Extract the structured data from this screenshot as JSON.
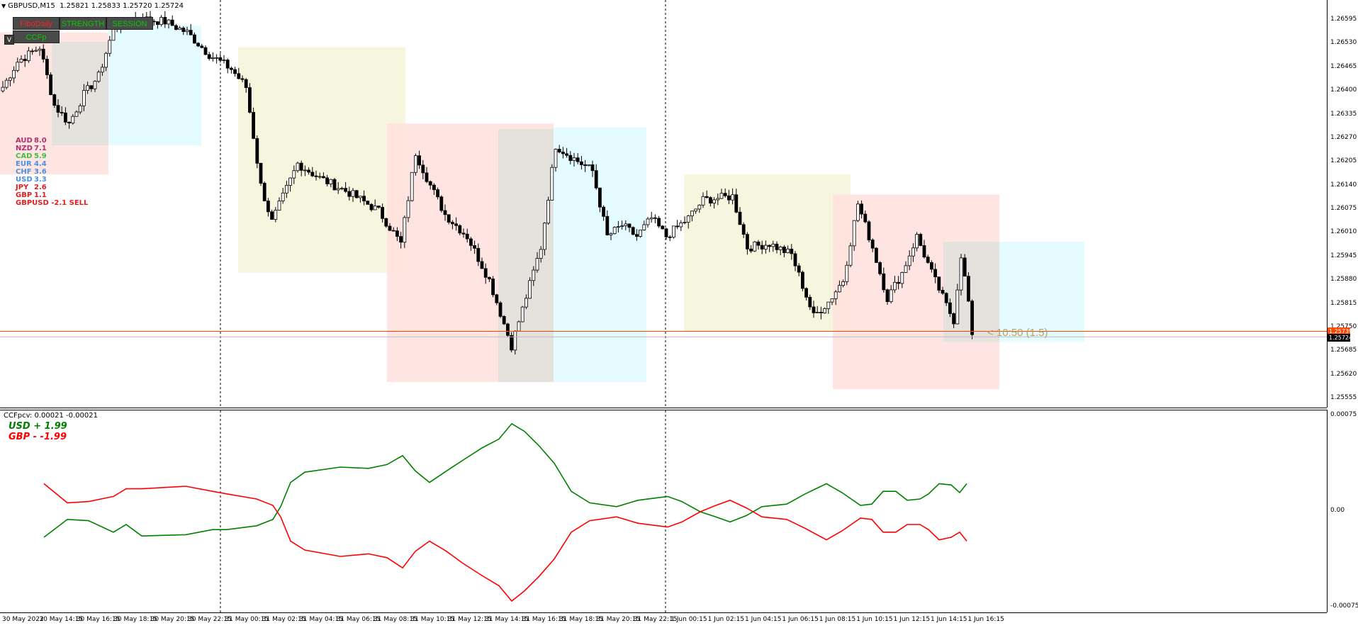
{
  "header": {
    "symbol": "GBPUSD,M15",
    "ohlc": "1.25821 1.25833 1.25720 1.25724"
  },
  "toolbar": {
    "fibo_label": "FiboDaily",
    "strength_label": "STRENGTH",
    "session_label": "SESSION",
    "ccfp_label": "CCFp",
    "v_label": "V"
  },
  "strength_list": [
    {
      "cur": "AUD",
      "val": "8.0",
      "color": "#b03070"
    },
    {
      "cur": "NZD",
      "val": "7.1",
      "color": "#b03070"
    },
    {
      "cur": "CAD",
      "val": "5.9",
      "color": "#40c040"
    },
    {
      "cur": "EUR",
      "val": "4.4",
      "color": "#4a90e0"
    },
    {
      "cur": "CHF",
      "val": "3.6",
      "color": "#4a90e0"
    },
    {
      "cur": "USD",
      "val": "3.3",
      "color": "#4a90e0"
    },
    {
      "cur": "JPY",
      "val": "2.6",
      "color": "#e02020"
    },
    {
      "cur": "GBP",
      "val": "1.1",
      "color": "#e02020"
    }
  ],
  "signal": "GBPUSD -2.1 SELL",
  "timer_label": "< 10:50 (1.5)",
  "price_axis": {
    "labels": [
      "1.26595",
      "1.26530",
      "1.26465",
      "1.26400",
      "1.26335",
      "1.26270",
      "1.26205",
      "1.26140",
      "1.26075",
      "1.26010",
      "1.25945",
      "1.25880",
      "1.25815",
      "1.25750",
      "1.25685",
      "1.25620",
      "1.25555"
    ],
    "bid_tag": "1.25739",
    "last_tag": "1.25724",
    "bid_color": "#ff4500",
    "last_color": "#000000"
  },
  "indicator": {
    "header": "CCFpcv: 0.00021 -0.00021",
    "usd_label": "USD +  1.99",
    "gbp_label": "GBP -  -1.99",
    "usd_color": "#008000",
    "gbp_color": "#ff0000",
    "axis_labels": [
      "0.00075",
      "0.00",
      "-0.00075"
    ]
  },
  "time_axis": [
    "30 May 2022",
    "30 May 14:15",
    "30 May 16:15",
    "30 May 18:15",
    "30 May 20:15",
    "30 May 22:15",
    "31 May 00:15",
    "31 May 02:15",
    "31 May 04:15",
    "31 May 06:15",
    "31 May 08:15",
    "31 May 10:15",
    "31 May 12:15",
    "31 May 14:15",
    "31 May 16:15",
    "31 May 18:15",
    "31 May 20:15",
    "31 May 22:15",
    "1 Jun 00:15",
    "1 Jun 02:15",
    "1 Jun 04:15",
    "1 Jun 06:15",
    "1 Jun 08:15",
    "1 Jun 10:15",
    "1 Jun 12:15",
    "1 Jun 14:15",
    "1 Jun 16:15"
  ],
  "chart_data": {
    "type": "candlestick",
    "price_range": [
      1.25555,
      1.2662
    ],
    "bid": 1.25739,
    "last": 1.25724,
    "anchors": [
      [
        0,
        1.2641
      ],
      [
        4,
        1.2648
      ],
      [
        10,
        1.2652
      ],
      [
        14,
        1.2636
      ],
      [
        18,
        1.2631
      ],
      [
        22,
        1.2639
      ],
      [
        26,
        1.2644
      ],
      [
        30,
        1.2657
      ],
      [
        36,
        1.266
      ],
      [
        44,
        1.2659
      ],
      [
        50,
        1.2656
      ],
      [
        56,
        1.265
      ],
      [
        62,
        1.2646
      ],
      [
        66,
        1.2641
      ],
      [
        70,
        1.2614
      ],
      [
        73,
        1.2604
      ],
      [
        80,
        1.262
      ],
      [
        86,
        1.2616
      ],
      [
        94,
        1.2612
      ],
      [
        102,
        1.2607
      ],
      [
        108,
        1.2598
      ],
      [
        112,
        1.2623
      ],
      [
        116,
        1.2614
      ],
      [
        120,
        1.2606
      ],
      [
        126,
        1.26
      ],
      [
        132,
        1.2588
      ],
      [
        136,
        1.2576
      ],
      [
        138,
        1.257
      ],
      [
        141,
        1.258
      ],
      [
        146,
        1.2597
      ],
      [
        150,
        1.2625
      ],
      [
        154,
        1.2622
      ],
      [
        160,
        1.2618
      ],
      [
        164,
        1.26
      ],
      [
        168,
        1.2603
      ],
      [
        172,
        1.26
      ],
      [
        176,
        1.2605
      ],
      [
        180,
        1.26
      ],
      [
        186,
        1.2605
      ],
      [
        190,
        1.261
      ],
      [
        198,
        1.2611
      ],
      [
        202,
        1.2597
      ],
      [
        208,
        1.2598
      ],
      [
        214,
        1.2595
      ],
      [
        220,
        1.2578
      ],
      [
        224,
        1.2582
      ],
      [
        228,
        1.2588
      ],
      [
        232,
        1.2609
      ],
      [
        236,
        1.2597
      ],
      [
        240,
        1.2583
      ],
      [
        244,
        1.259
      ],
      [
        248,
        1.26
      ],
      [
        252,
        1.259
      ],
      [
        256,
        1.2581
      ],
      [
        258,
        1.2577
      ],
      [
        260,
        1.2595
      ],
      [
        262,
        1.2582
      ],
      [
        263,
        1.2573
      ]
    ],
    "sessions": [
      {
        "x0": 0,
        "x1": 153,
        "y0": 1.2656,
        "y1": 1.2617,
        "color": "#ffe0dc"
      },
      {
        "x0": 73,
        "x1": 153,
        "y0": 1.26535,
        "y1": 1.2625,
        "color": "#e0e0dc"
      },
      {
        "x0": 153,
        "x1": 284,
        "y0": 1.2658,
        "y1": 1.2625,
        "color": "#dffcff"
      },
      {
        "x0": 336,
        "x1": 572,
        "y0": 1.2652,
        "y1": 1.259,
        "color": "#f5f3d8"
      },
      {
        "x0": 546,
        "x1": 781,
        "y0": 1.2631,
        "y1": 1.256,
        "color": "#ffe0dc"
      },
      {
        "x0": 703,
        "x1": 781,
        "y0": 1.26295,
        "y1": 1.256,
        "color": "#e0e0dc"
      },
      {
        "x0": 781,
        "x1": 912,
        "y0": 1.263,
        "y1": 1.256,
        "color": "#dffcff"
      },
      {
        "x0": 965,
        "x1": 1200,
        "y0": 1.2617,
        "y1": 1.2574,
        "color": "#f5f3d8"
      },
      {
        "x0": 1175,
        "x1": 1410,
        "y0": 1.26115,
        "y1": 1.2558,
        "color": "#ffe0dc"
      },
      {
        "x0": 1331,
        "x1": 1410,
        "y0": 1.25985,
        "y1": 1.2571,
        "color": "#e0e0dc"
      },
      {
        "x0": 1410,
        "x1": 1530,
        "y0": 1.25985,
        "y1": 1.2571,
        "color": "#dffcff"
      }
    ],
    "indicator_range": [
      -0.00075,
      0.00075
    ],
    "usd_anchors": [
      [
        62,
        -0.0002
      ],
      [
        95,
        -6e-05
      ],
      [
        125,
        -7e-05
      ],
      [
        160,
        -0.00016
      ],
      [
        178,
        -0.0001
      ],
      [
        200,
        -0.00019
      ],
      [
        262,
        -0.00018
      ],
      [
        300,
        -0.00014
      ],
      [
        320,
        -0.00014
      ],
      [
        362,
        -0.00011
      ],
      [
        385,
        -6e-05
      ],
      [
        396,
        4e-05
      ],
      [
        410,
        0.00023
      ],
      [
        430,
        0.00031
      ],
      [
        480,
        0.00035
      ],
      [
        520,
        0.00034
      ],
      [
        546,
        0.00037
      ],
      [
        568,
        0.00044
      ],
      [
        586,
        0.00032
      ],
      [
        606,
        0.00023
      ],
      [
        630,
        0.00032
      ],
      [
        652,
        0.0004
      ],
      [
        680,
        0.0005
      ],
      [
        704,
        0.00057
      ],
      [
        722,
        0.00069
      ],
      [
        740,
        0.00063
      ],
      [
        760,
        0.00052
      ],
      [
        782,
        0.00038
      ],
      [
        806,
        0.00016
      ],
      [
        832,
        7e-05
      ],
      [
        870,
        4e-05
      ],
      [
        900,
        9e-05
      ],
      [
        942,
        0.00012
      ],
      [
        962,
        8e-05
      ],
      [
        988,
        0.0
      ],
      [
        1010,
        -4e-05
      ],
      [
        1030,
        -8e-05
      ],
      [
        1053,
        -3e-05
      ],
      [
        1075,
        4e-05
      ],
      [
        1110,
        6e-05
      ],
      [
        1136,
        0.00014
      ],
      [
        1166,
        0.00022
      ],
      [
        1188,
        0.00015
      ],
      [
        1214,
        5e-05
      ],
      [
        1230,
        6e-05
      ],
      [
        1246,
        0.00016
      ],
      [
        1264,
        0.00016
      ],
      [
        1280,
        9e-05
      ],
      [
        1298,
        0.0001
      ],
      [
        1310,
        0.00014
      ],
      [
        1325,
        0.00022
      ],
      [
        1342,
        0.00021
      ],
      [
        1354,
        0.00015
      ],
      [
        1364,
        0.00022
      ]
    ],
    "gbp_anchors": [
      [
        62,
        0.00022
      ],
      [
        95,
        7e-05
      ],
      [
        125,
        8e-05
      ],
      [
        160,
        0.00012
      ],
      [
        178,
        0.00018
      ],
      [
        200,
        0.00018
      ],
      [
        262,
        0.0002
      ],
      [
        300,
        0.00016
      ],
      [
        320,
        0.00014
      ],
      [
        362,
        0.0001
      ],
      [
        385,
        5e-05
      ],
      [
        396,
        -4e-05
      ],
      [
        410,
        -0.00023
      ],
      [
        430,
        -0.0003
      ],
      [
        480,
        -0.00035
      ],
      [
        520,
        -0.00033
      ],
      [
        546,
        -0.00036
      ],
      [
        568,
        -0.00044
      ],
      [
        586,
        -0.00031
      ],
      [
        606,
        -0.00023
      ],
      [
        630,
        -0.00031
      ],
      [
        652,
        -0.0004
      ],
      [
        680,
        -0.0005
      ],
      [
        704,
        -0.00058
      ],
      [
        722,
        -0.0007
      ],
      [
        740,
        -0.00062
      ],
      [
        760,
        -0.00051
      ],
      [
        782,
        -0.00037
      ],
      [
        806,
        -0.00016
      ],
      [
        832,
        -7e-05
      ],
      [
        870,
        -4e-05
      ],
      [
        900,
        -9e-05
      ],
      [
        942,
        -0.00012
      ],
      [
        962,
        -8e-05
      ],
      [
        988,
        0.0
      ],
      [
        1010,
        5e-05
      ],
      [
        1030,
        9e-05
      ],
      [
        1053,
        3e-05
      ],
      [
        1075,
        -4e-05
      ],
      [
        1110,
        -6e-05
      ],
      [
        1136,
        -0.00013
      ],
      [
        1166,
        -0.00022
      ],
      [
        1188,
        -0.00015
      ],
      [
        1214,
        -5e-05
      ],
      [
        1230,
        -6e-05
      ],
      [
        1246,
        -0.00016
      ],
      [
        1264,
        -0.00016
      ],
      [
        1280,
        -0.0001
      ],
      [
        1298,
        -0.0001
      ],
      [
        1310,
        -0.00014
      ],
      [
        1325,
        -0.00022
      ],
      [
        1342,
        -0.0002
      ],
      [
        1354,
        -0.00016
      ],
      [
        1364,
        -0.00023
      ]
    ]
  }
}
